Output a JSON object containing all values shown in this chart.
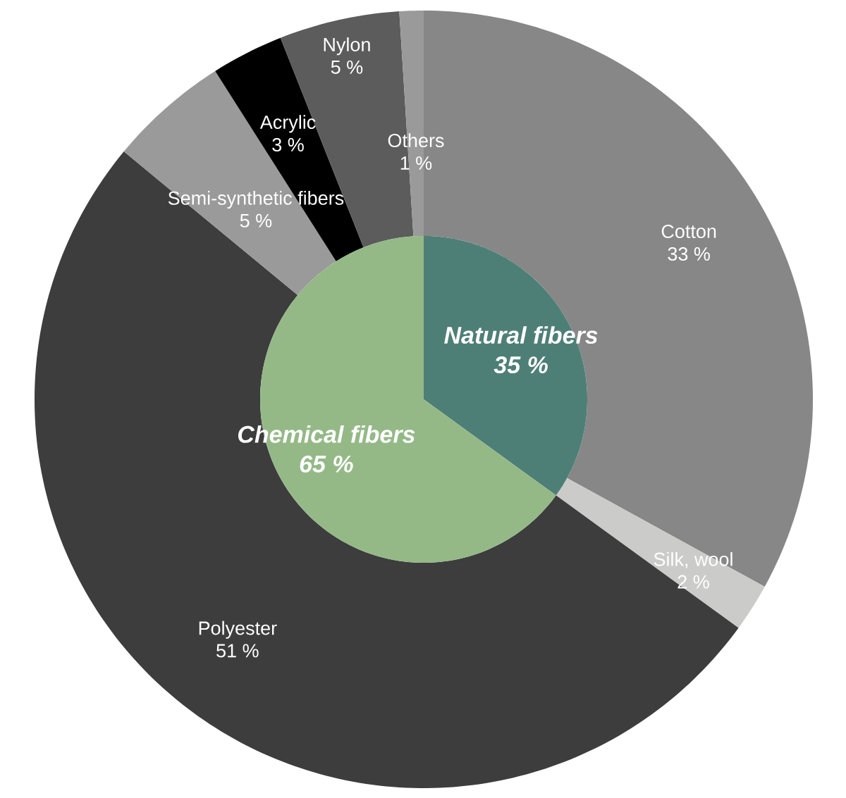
{
  "chart_data": [
    {
      "type": "donut",
      "categories": [
        "Cotton",
        "Silk, wool",
        "Polyester",
        "Semi-synthetic fibers",
        "Acrylic",
        "Nylon",
        "Others"
      ],
      "values": [
        33,
        2,
        51,
        5,
        3,
        5,
        1
      ],
      "colors": [
        "#878787",
        "#cbcbc9",
        "#3d3d3d",
        "#9a9a9a",
        "#000000",
        "#5c5c5c",
        "#9a9a9a"
      ],
      "value_labels": [
        "33 %",
        "2 %",
        "51 %",
        "5 %",
        "3 %",
        "5 %",
        "1 %"
      ]
    },
    {
      "type": "pie",
      "categories": [
        "Natural fibers",
        "Chemical fibers"
      ],
      "values": [
        35,
        65
      ],
      "colors": [
        "#4e7f76",
        "#94b987"
      ],
      "value_labels": [
        "35 %",
        "65 %"
      ]
    }
  ]
}
